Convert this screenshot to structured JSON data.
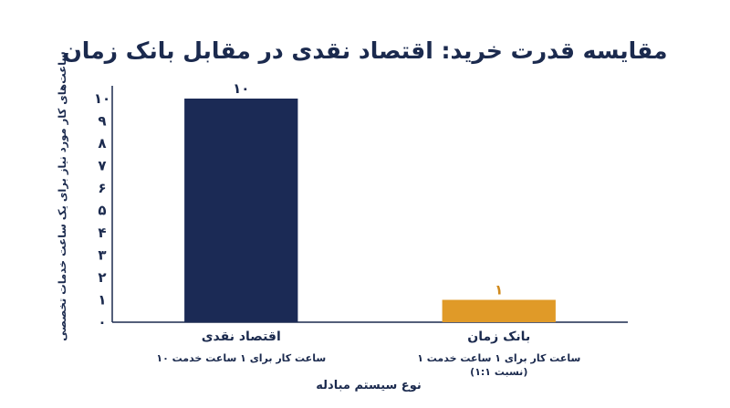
{
  "chart_data": {
    "type": "bar",
    "title": "مقایسه قدرت خرید: اقتصاد نقدی در مقابل بانک زمان",
    "xlabel": "نوع سیستم مبادله",
    "ylabel": "ساعت‌های کار مورد نیاز برای یک ساعت خدمات تخصصی",
    "ylim": [
      0,
      10
    ],
    "yticks": [
      0,
      1,
      2,
      3,
      4,
      5,
      6,
      7,
      8,
      9,
      10
    ],
    "ytick_labels": [
      "۰",
      "۱",
      "۲",
      "۳",
      "۴",
      "۵",
      "۶",
      "۷",
      "۸",
      "۹",
      "۱۰"
    ],
    "categories": [
      "اقتصاد نقدی",
      "بانک زمان"
    ],
    "category_sublabels": [
      [
        "۱۰ ساعت کار برای ۱ ساعت خدمت"
      ],
      [
        "۱ ساعت کار برای ۱ ساعت خدمت",
        "(نسبت ۱:۱)"
      ]
    ],
    "values": [
      10,
      1
    ],
    "data_labels": [
      "۱۰",
      "۱"
    ],
    "colors": [
      "#1b2a55",
      "#e09a28"
    ],
    "data_label_colors": [
      "#1b2a4e",
      "#d08a1e"
    ],
    "axis_color": "#1b2a4e",
    "grid": false,
    "legend": "none"
  }
}
